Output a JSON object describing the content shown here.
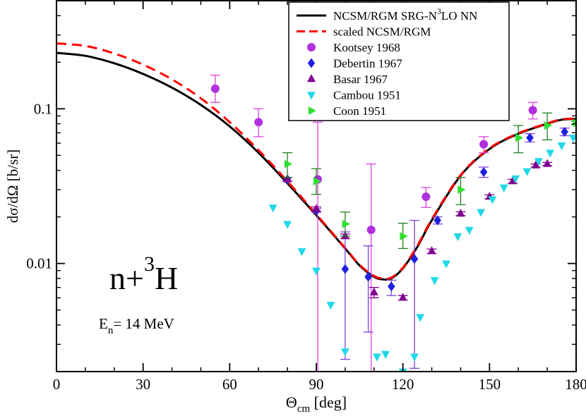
{
  "chart_data": {
    "type": "scatter",
    "xlabel_main": "Θ",
    "xlabel_sub": "cm",
    "xlabel_rest": " [deg]",
    "ylabel": "dσ/dΩ [b/sr]",
    "xlim": [
      0,
      180
    ],
    "ylim": [
      0.002,
      0.5
    ],
    "yscale": "log",
    "x_ticks": [
      0,
      30,
      60,
      90,
      120,
      150,
      180
    ],
    "x_tick_labels": [
      "0",
      "30",
      "60",
      "90",
      "120",
      "150",
      "180"
    ],
    "y_ticks": [
      0.01,
      0.1
    ],
    "y_tick_labels": [
      "0.01",
      "0.1"
    ],
    "annotation_reaction": {
      "base": "n+",
      "sup": "3",
      "after": "H"
    },
    "annotation_energy": {
      "main": "E",
      "sub": "n",
      "rest": "= 14 MeV"
    },
    "legend": [
      {
        "label_pre": "NCSM/RGM SRG-N",
        "label_sup": "3",
        "label_post": "LO NN",
        "kind": "line",
        "color": "#000000",
        "dash": "none"
      },
      {
        "label_pre": "scaled NCSM/RGM",
        "label_sup": "",
        "label_post": "",
        "kind": "line",
        "color": "#ff0000",
        "dash": "dashed"
      },
      {
        "label_pre": "Kootsey 1968",
        "label_sup": "",
        "label_post": "",
        "kind": "circle",
        "color": "#b030e0"
      },
      {
        "label_pre": "Debertin 1967",
        "label_sup": "",
        "label_post": "",
        "kind": "diamond",
        "color": "#2020e0"
      },
      {
        "label_pre": "Basar 1967",
        "label_sup": "",
        "label_post": "",
        "kind": "triangle-up",
        "color": "#800090"
      },
      {
        "label_pre": "Cambou 1951",
        "label_sup": "",
        "label_post": "",
        "kind": "triangle-down",
        "color": "#20d8e8"
      },
      {
        "label_pre": "Coon 1951",
        "label_sup": "",
        "label_post": "",
        "kind": "triangle-right",
        "color": "#30e030"
      }
    ],
    "curves": [
      {
        "name": "NCSM/RGM SRG-N3LO NN",
        "color": "#000000",
        "dash": "none",
        "x": [
          0,
          10,
          20,
          30,
          40,
          50,
          60,
          70,
          80,
          90,
          100,
          105,
          110,
          113,
          116,
          120,
          125,
          130,
          140,
          150,
          160,
          170,
          175,
          180
        ],
        "y": [
          0.23,
          0.22,
          0.197,
          0.168,
          0.137,
          0.106,
          0.077,
          0.052,
          0.033,
          0.0205,
          0.0125,
          0.0097,
          0.0082,
          0.0079,
          0.008,
          0.0093,
          0.0128,
          0.019,
          0.037,
          0.055,
          0.069,
          0.08,
          0.085,
          0.086
        ]
      },
      {
        "name": "scaled NCSM/RGM",
        "color": "#ff0000",
        "dash": "dashed",
        "x": [
          0,
          10,
          20,
          30,
          40,
          50,
          60,
          70,
          80,
          90,
          100,
          105,
          110,
          113,
          116,
          120,
          125,
          130,
          140,
          150,
          160,
          170,
          175,
          180
        ],
        "y": [
          0.265,
          0.255,
          0.228,
          0.193,
          0.155,
          0.117,
          0.082,
          0.054,
          0.034,
          0.0208,
          0.0126,
          0.0098,
          0.0083,
          0.008,
          0.0081,
          0.0094,
          0.013,
          0.0193,
          0.0373,
          0.0555,
          0.0695,
          0.0805,
          0.0855,
          0.0865
        ]
      }
    ],
    "series": [
      {
        "name": "Kootsey 1968",
        "marker": "circle",
        "color": "#b030e0",
        "err_color": "#e040e0",
        "points": [
          {
            "x": 55,
            "y": 0.135,
            "lo": 0.11,
            "hi": 0.165
          },
          {
            "x": 70,
            "y": 0.082,
            "lo": 0.066,
            "hi": 0.1
          },
          {
            "x": 90.5,
            "y": 0.035,
            "lo": 0.0018,
            "hi": 0.082
          },
          {
            "x": 109,
            "y": 0.0165,
            "lo": 0.0018,
            "hi": 0.044
          },
          {
            "x": 128,
            "y": 0.027,
            "lo": 0.023,
            "hi": 0.031
          },
          {
            "x": 148,
            "y": 0.059,
            "lo": 0.052,
            "hi": 0.066
          },
          {
            "x": 165,
            "y": 0.098,
            "lo": 0.086,
            "hi": 0.11
          }
        ]
      },
      {
        "name": "Debertin 1967",
        "marker": "diamond",
        "color": "#2020e0",
        "err_color": "#8040e0",
        "points": [
          {
            "x": 80,
            "y": 0.035,
            "lo": 0.034,
            "hi": 0.036
          },
          {
            "x": 90,
            "y": 0.022,
            "lo": 0.0214,
            "hi": 0.0226
          },
          {
            "x": 100,
            "y": 0.0092,
            "lo": 0.0024,
            "hi": 0.016
          },
          {
            "x": 108,
            "y": 0.0082,
            "lo": 0.0036,
            "hi": 0.013
          },
          {
            "x": 116,
            "y": 0.0071,
            "lo": 0.0062,
            "hi": 0.0078
          },
          {
            "x": 124,
            "y": 0.0107,
            "lo": 0.0021,
            "hi": 0.019
          },
          {
            "x": 132,
            "y": 0.019,
            "lo": 0.018,
            "hi": 0.02
          },
          {
            "x": 148,
            "y": 0.039,
            "lo": 0.036,
            "hi": 0.042
          },
          {
            "x": 164,
            "y": 0.065,
            "lo": 0.061,
            "hi": 0.069
          },
          {
            "x": 176,
            "y": 0.071,
            "lo": 0.067,
            "hi": 0.075
          }
        ]
      },
      {
        "name": "Basar 1967",
        "marker": "triangle-up",
        "color": "#800090",
        "err_color": "#800090",
        "points": [
          {
            "x": 80,
            "y": 0.035,
            "lo": 0.034,
            "hi": 0.036
          },
          {
            "x": 90,
            "y": 0.0225,
            "lo": 0.0218,
            "hi": 0.0232
          },
          {
            "x": 100,
            "y": 0.015,
            "lo": 0.0145,
            "hi": 0.0155
          },
          {
            "x": 110,
            "y": 0.0065,
            "lo": 0.006,
            "hi": 0.007
          },
          {
            "x": 120,
            "y": 0.006,
            "lo": 0.0058,
            "hi": 0.0062
          },
          {
            "x": 130,
            "y": 0.012,
            "lo": 0.0116,
            "hi": 0.0124
          },
          {
            "x": 140,
            "y": 0.021,
            "lo": 0.0204,
            "hi": 0.0216
          },
          {
            "x": 150,
            "y": 0.027,
            "lo": 0.0262,
            "hi": 0.0278
          },
          {
            "x": 158,
            "y": 0.034,
            "lo": 0.033,
            "hi": 0.035
          },
          {
            "x": 166,
            "y": 0.043,
            "lo": 0.042,
            "hi": 0.044
          },
          {
            "x": 170,
            "y": 0.044,
            "lo": 0.043,
            "hi": 0.045
          }
        ]
      },
      {
        "name": "Cambou 1951",
        "marker": "triangle-down",
        "color": "#20d8e8",
        "err_color": "#20d8e8",
        "points": [
          {
            "x": 75,
            "y": 0.023
          },
          {
            "x": 80,
            "y": 0.018
          },
          {
            "x": 85,
            "y": 0.012
          },
          {
            "x": 90,
            "y": 0.009
          },
          {
            "x": 95,
            "y": 0.0054
          },
          {
            "x": 100,
            "y": 0.0027
          },
          {
            "x": 111,
            "y": 0.0025
          },
          {
            "x": 114,
            "y": 0.0026
          },
          {
            "x": 120,
            "y": 0.002
          },
          {
            "x": 124,
            "y": 0.0025
          },
          {
            "x": 126,
            "y": 0.0045
          },
          {
            "x": 131,
            "y": 0.0078
          },
          {
            "x": 135,
            "y": 0.01
          },
          {
            "x": 139,
            "y": 0.015
          },
          {
            "x": 143,
            "y": 0.0165
          },
          {
            "x": 147,
            "y": 0.0215
          },
          {
            "x": 151,
            "y": 0.026
          },
          {
            "x": 155,
            "y": 0.031
          },
          {
            "x": 159,
            "y": 0.0355
          },
          {
            "x": 163,
            "y": 0.0395
          },
          {
            "x": 167,
            "y": 0.046
          },
          {
            "x": 171,
            "y": 0.052
          },
          {
            "x": 175,
            "y": 0.058
          },
          {
            "x": 179,
            "y": 0.065
          }
        ]
      },
      {
        "name": "Coon 1951",
        "marker": "triangle-right",
        "color": "#30e030",
        "err_color": "#208020",
        "points": [
          {
            "x": 80,
            "y": 0.044,
            "lo": 0.036,
            "hi": 0.052
          },
          {
            "x": 90,
            "y": 0.034,
            "lo": 0.028,
            "hi": 0.041
          },
          {
            "x": 100,
            "y": 0.018,
            "lo": 0.015,
            "hi": 0.0215
          },
          {
            "x": 120,
            "y": 0.015,
            "lo": 0.0125,
            "hi": 0.0182
          },
          {
            "x": 140,
            "y": 0.03,
            "lo": 0.024,
            "hi": 0.036
          },
          {
            "x": 160,
            "y": 0.065,
            "lo": 0.052,
            "hi": 0.078
          },
          {
            "x": 170,
            "y": 0.078,
            "lo": 0.063,
            "hi": 0.094
          },
          {
            "x": 180,
            "y": 0.081,
            "lo": 0.079,
            "hi": 0.083
          }
        ]
      }
    ]
  }
}
